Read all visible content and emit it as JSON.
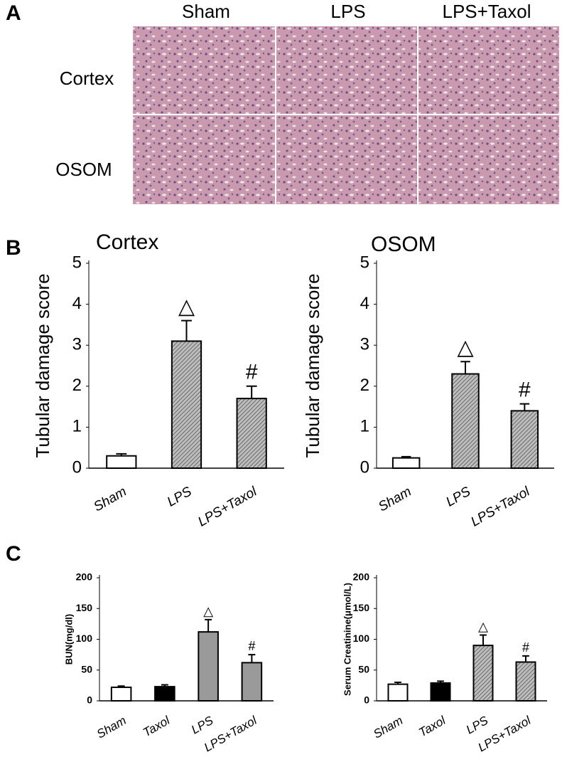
{
  "panel_labels": [
    "A",
    "B",
    "C"
  ],
  "panel_a": {
    "columns": [
      "Sham",
      "LPS",
      "LPS+Taxol"
    ],
    "rows": [
      "Cortex",
      "OSOM"
    ]
  },
  "chart_data": [
    {
      "type": "bar",
      "title": "Cortex",
      "ylabel": "Tubular damage score",
      "categories": [
        "Sham",
        "LPS",
        "LPS+Taxol"
      ],
      "values": [
        0.3,
        3.1,
        1.7
      ],
      "errors": [
        0.05,
        0.5,
        0.3
      ],
      "colors": [
        "#ffffff",
        "#9a9a9a",
        "#9a9a9a"
      ],
      "hatch": [
        false,
        true,
        true
      ],
      "bar_labels": [
        null,
        "△",
        "#"
      ],
      "ylim": [
        0,
        5
      ],
      "yticks": [
        0,
        1,
        2,
        3,
        4,
        5
      ]
    },
    {
      "type": "bar",
      "title": "OSOM",
      "ylabel": "Tubular damage score",
      "categories": [
        "Sham",
        "LPS",
        "LPS+Taxol"
      ],
      "values": [
        0.25,
        2.3,
        1.4
      ],
      "errors": [
        0.03,
        0.3,
        0.17
      ],
      "colors": [
        "#ffffff",
        "#9a9a9a",
        "#9a9a9a"
      ],
      "hatch": [
        false,
        true,
        true
      ],
      "bar_labels": [
        null,
        "△",
        "#"
      ],
      "ylim": [
        0,
        5
      ],
      "yticks": [
        0,
        1,
        2,
        3,
        4,
        5
      ]
    },
    {
      "type": "bar",
      "ylabel": "BUN(mg/dl)",
      "categories": [
        "Sham",
        "Taxol",
        "LPS",
        "LPS+Taxol"
      ],
      "values": [
        22,
        23,
        112,
        62
      ],
      "errors": [
        2,
        3,
        20,
        13
      ],
      "colors": [
        "#ffffff",
        "#000000",
        "#9a9a9a",
        "#9a9a9a"
      ],
      "hatch": [
        false,
        false,
        false,
        false
      ],
      "bar_labels": [
        null,
        null,
        "△",
        "#"
      ],
      "ylim": [
        0,
        200
      ],
      "yticks": [
        0,
        50,
        100,
        150,
        200
      ]
    },
    {
      "type": "bar",
      "ylabel": "Serum Creatinine(μmol/L)",
      "categories": [
        "Sham",
        "Taxol",
        "LPS",
        "LPS+Taxol"
      ],
      "values": [
        27,
        29,
        90,
        63
      ],
      "errors": [
        3,
        3,
        17,
        10
      ],
      "colors": [
        "#ffffff",
        "#000000",
        "#9a9a9a",
        "#9a9a9a"
      ],
      "hatch": [
        false,
        false,
        true,
        true
      ],
      "bar_labels": [
        null,
        null,
        "△",
        "#"
      ],
      "ylim": [
        0,
        200
      ],
      "yticks": [
        0,
        50,
        100,
        150,
        200
      ]
    }
  ]
}
